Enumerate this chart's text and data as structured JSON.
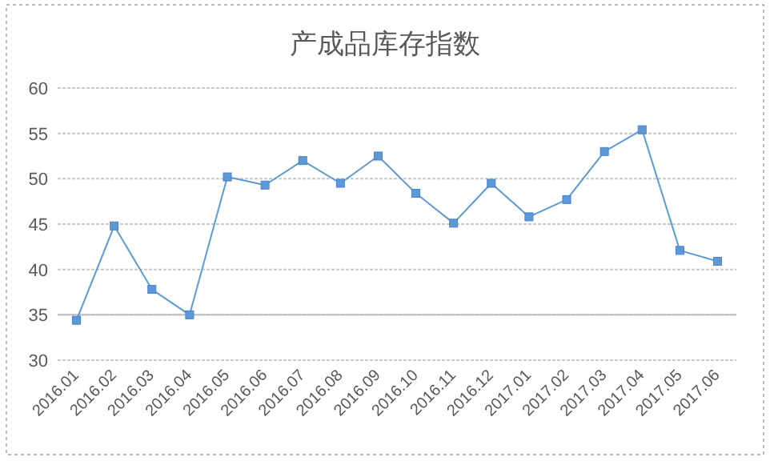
{
  "chart_data": {
    "type": "line",
    "title": "产成品库存指数",
    "categories": [
      "2016.01",
      "2016.02",
      "2016.03",
      "2016.04",
      "2016.05",
      "2016.06",
      "2016.07",
      "2016.08",
      "2016.09",
      "2016.10",
      "2016.11",
      "2016.12",
      "2017.01",
      "2017.02",
      "2017.03",
      "2017.04",
      "2017.05",
      "2017.06"
    ],
    "series": [
      {
        "color": "#5b9bd5",
        "values": [
          34.4,
          44.8,
          37.8,
          35.0,
          50.2,
          49.3,
          52.0,
          49.5,
          52.5,
          48.4,
          45.1,
          49.5,
          45.8,
          47.7,
          53.0,
          55.4,
          42.1,
          40.9
        ]
      }
    ],
    "ylim": [
      30,
      60
    ],
    "yticks": [
      30,
      35,
      40,
      45,
      50,
      55,
      60
    ],
    "grid": "y",
    "marker": "square",
    "line_style": "solid",
    "ref_lines": [
      {
        "axis": "y",
        "value": 35,
        "color": "#bfbfbf",
        "line_style": "solid"
      }
    ]
  }
}
